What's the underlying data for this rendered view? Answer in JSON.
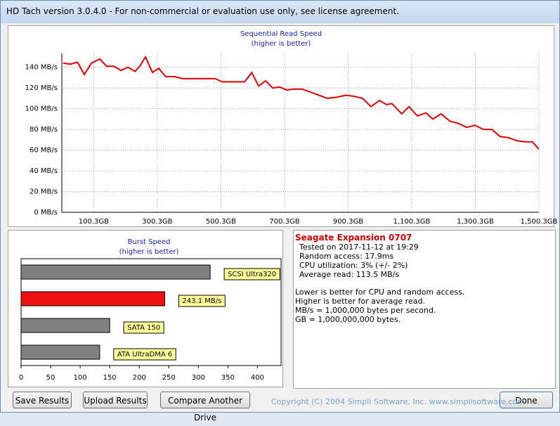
{
  "window": {
    "title": "HD Tach version 3.0.4.0  - For non-commercial or evaluation use only, see license agreement."
  },
  "chart_data": [
    {
      "type": "line",
      "title": "Sequential Read Speed",
      "subtitle": "(higher is better)",
      "color": "#e00000",
      "x": [
        4,
        27,
        49,
        71,
        93,
        119,
        141,
        164,
        186,
        208,
        230,
        245,
        263,
        285,
        305,
        327,
        354,
        380,
        407,
        433,
        460,
        482,
        504,
        539,
        575,
        597,
        619,
        641,
        663,
        685,
        707,
        729,
        756,
        782,
        809,
        835,
        862,
        893,
        919,
        946,
        972,
        999,
        1021,
        1038,
        1069,
        1092,
        1118,
        1145,
        1167,
        1193,
        1220,
        1246,
        1273,
        1299,
        1326,
        1352,
        1379,
        1405,
        1432,
        1458,
        1480,
        1500
      ],
      "values": [
        144,
        143,
        145,
        133,
        144,
        148,
        141,
        141,
        137,
        140,
        136,
        141,
        150,
        135,
        139,
        131,
        131,
        129,
        129,
        129,
        129,
        129,
        126,
        126,
        126,
        135,
        122,
        127,
        120,
        121,
        118,
        119,
        119,
        116,
        113,
        110,
        111,
        113,
        112,
        110,
        102,
        108,
        104,
        105,
        95,
        102,
        93,
        96,
        90,
        95,
        88,
        86,
        82,
        84,
        80,
        80,
        73,
        72,
        69,
        68,
        68,
        61
      ],
      "xlim": [
        0,
        1500.3
      ],
      "ylim": [
        0,
        150
      ],
      "xticks": [
        {
          "value": 100.3,
          "label": "100.3GB"
        },
        {
          "value": 300.3,
          "label": "300.3GB"
        },
        {
          "value": 500.3,
          "label": "500.3GB"
        },
        {
          "value": 700.3,
          "label": "700.3GB"
        },
        {
          "value": 900.3,
          "label": "900.3GB"
        },
        {
          "value": 1100.3,
          "label": "1,100.3GB"
        },
        {
          "value": 1300.3,
          "label": "1,300.3GB"
        },
        {
          "value": 1500.3,
          "label": "1,500.3GB"
        }
      ],
      "yticks": [
        {
          "value": 0,
          "label": "0 MB/s"
        },
        {
          "value": 20,
          "label": "20 MB/s"
        },
        {
          "value": 40,
          "label": "40 MB/s"
        },
        {
          "value": 60,
          "label": "60 MB/s"
        },
        {
          "value": 80,
          "label": "80 MB/s"
        },
        {
          "value": 100,
          "label": "100 MB/s"
        },
        {
          "value": 120,
          "label": "120 MB/s"
        },
        {
          "value": 140,
          "label": "140 MB/s"
        }
      ],
      "grid": true
    },
    {
      "type": "hbar",
      "title": "Burst Speed",
      "subtitle": "(higher is better)",
      "categories": [
        "SCSI Ultra320",
        null,
        "SATA 150",
        "ATA UltraDMA 6"
      ],
      "values": [
        320,
        243.1,
        150,
        133
      ],
      "value_labels": [
        null,
        "243.1 MB/s",
        null,
        null
      ],
      "colors": [
        "#808080",
        "#f01010",
        "#808080",
        "#808080"
      ],
      "xlim": [
        0,
        440
      ],
      "xticks": [
        0,
        50,
        100,
        150,
        200,
        250,
        300,
        350,
        400
      ],
      "grid": true
    }
  ],
  "info": {
    "drive": "Seagate Expansion 0707",
    "details": [
      "Tested on 2017-11-12 at 19:29",
      "Random access: 17.9ms",
      "CPU utilization: 3% (+/- 2%)",
      "Average read: 113.5 MB/s"
    ],
    "notes": [
      "Lower is better for CPU and random access.",
      "Higher is better for average read.",
      "MB/s = 1,000,000 bytes per second.",
      "GB = 1,000,000,000 bytes."
    ]
  },
  "buttons": [
    "Save Results",
    "Upload Results",
    "Compare Another Drive",
    "Done"
  ],
  "footer": {
    "copyright": "Copyright (C) 2004 Simpli Software, Inc. www.simplisoftware.com"
  }
}
